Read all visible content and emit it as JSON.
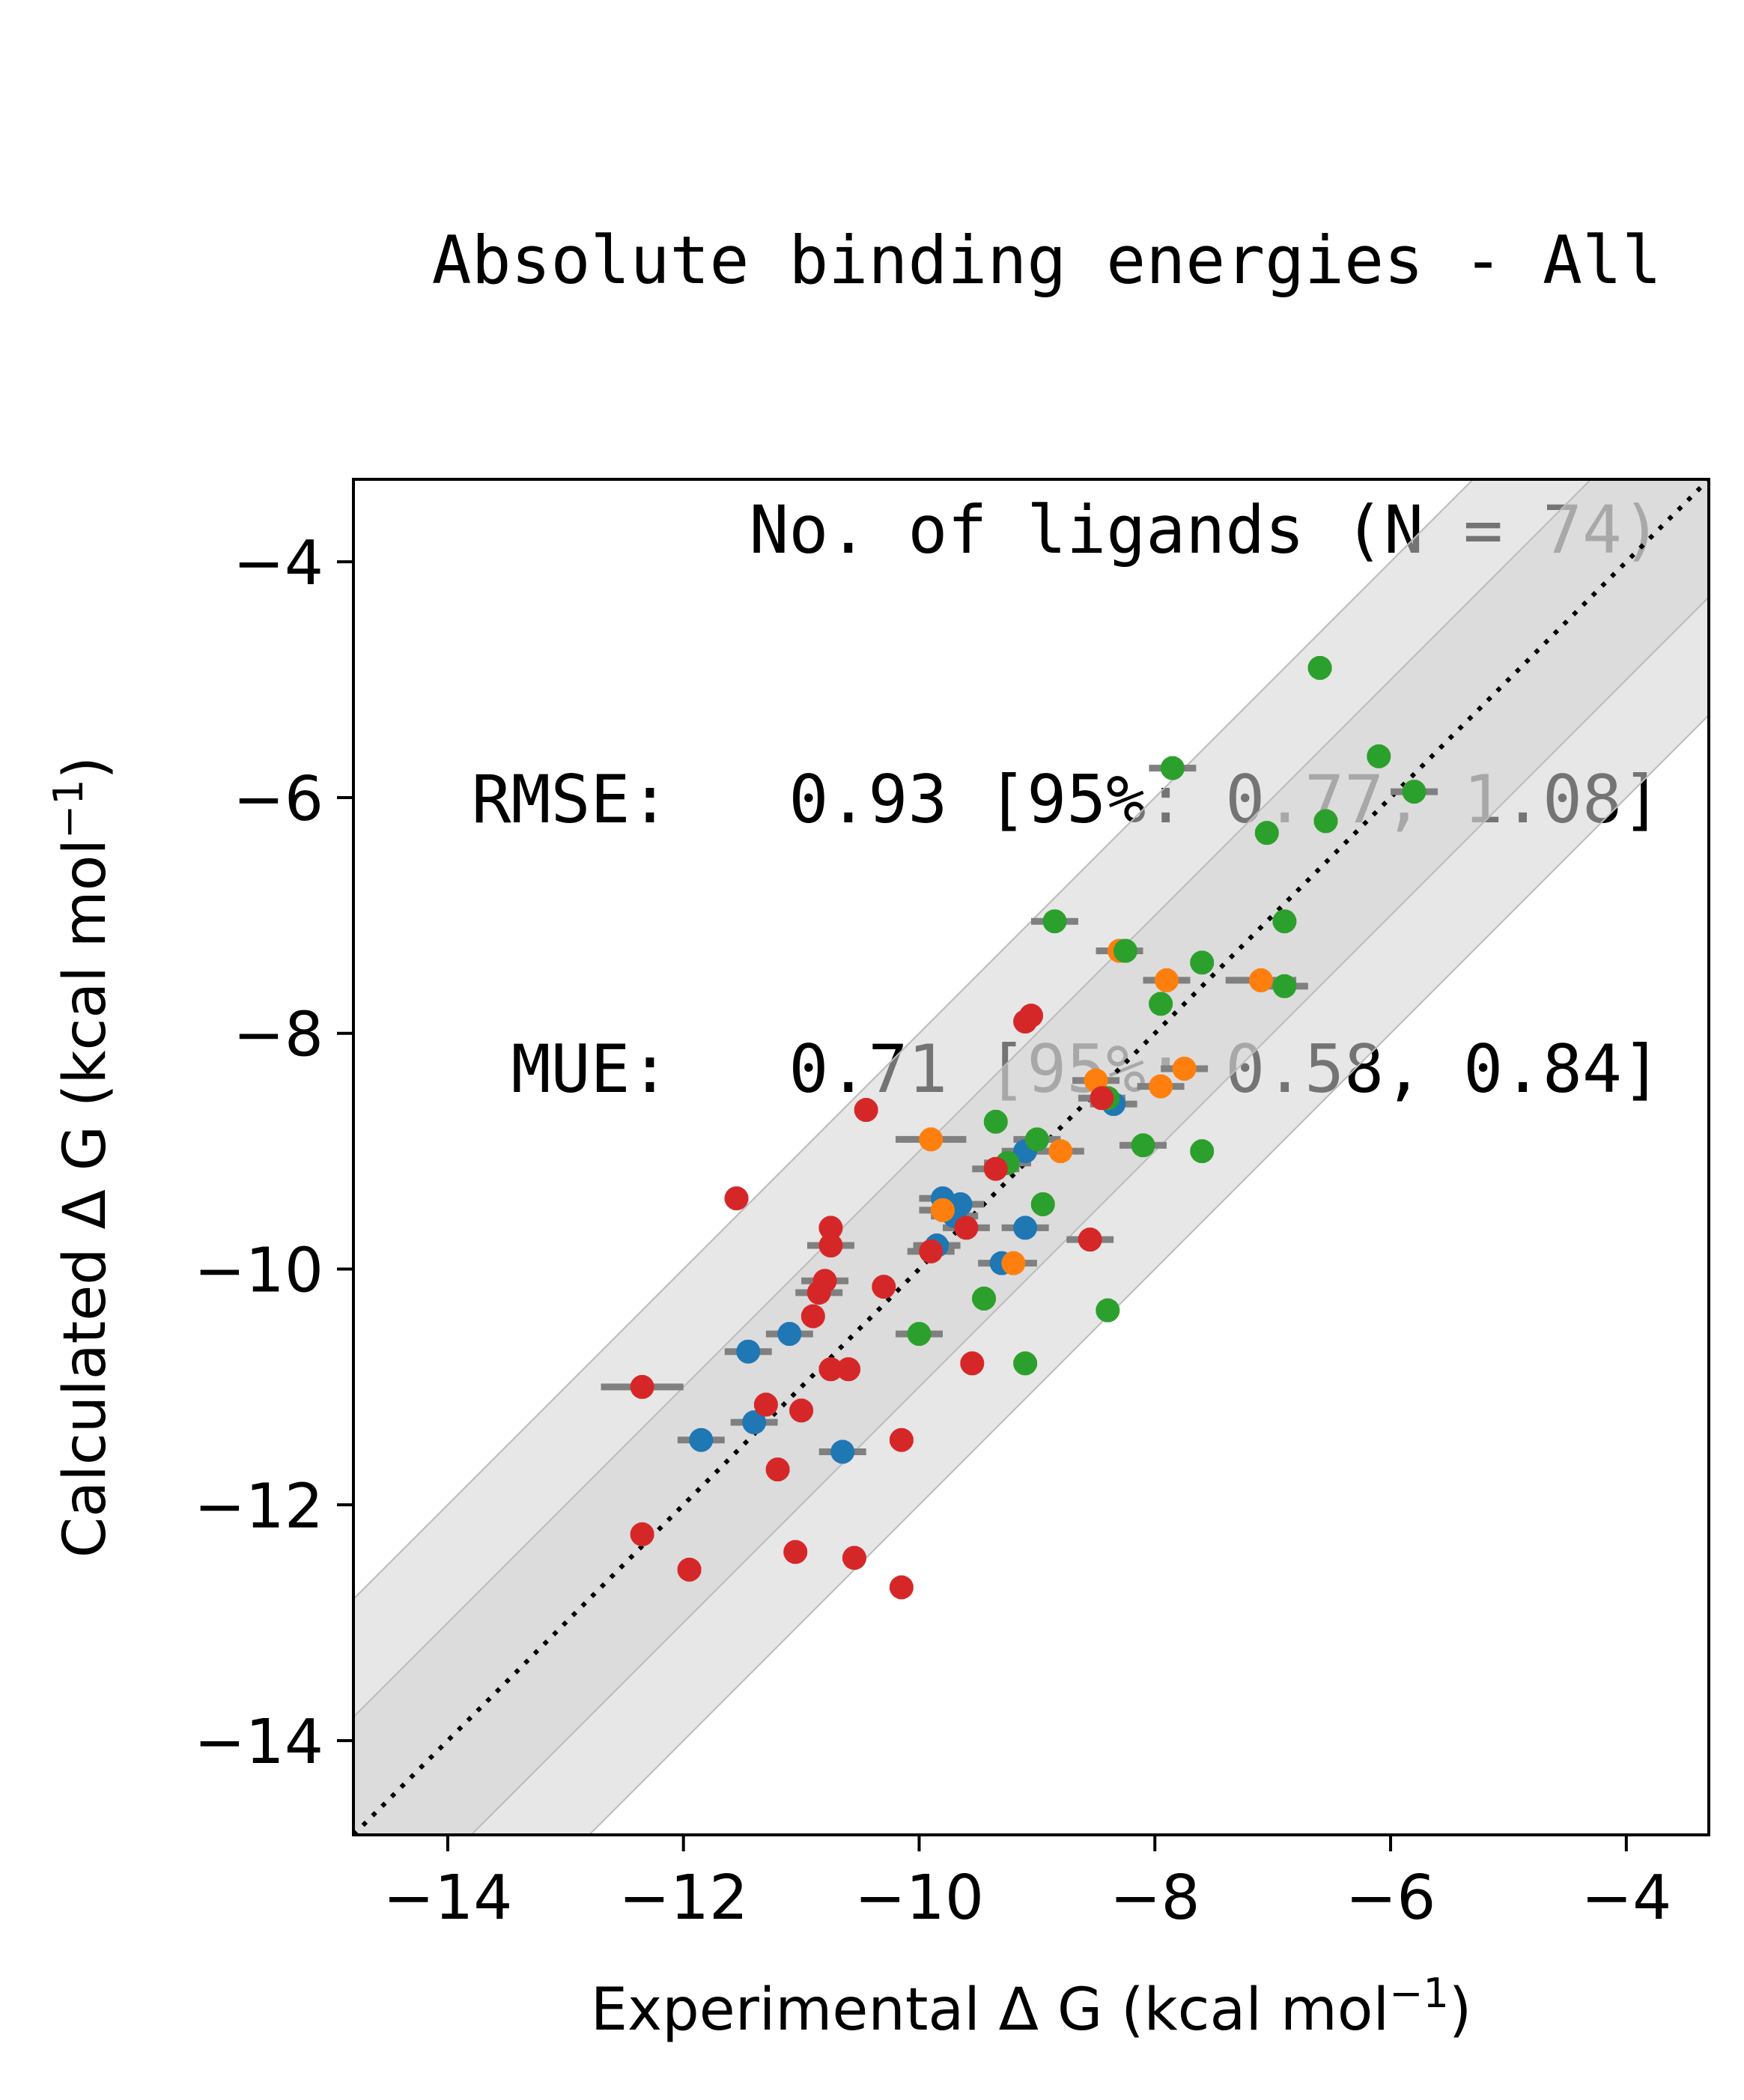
{
  "title_lines": [
    "Absolute binding energies - All",
    "No. of ligands (N = 74)",
    "RMSE:   0.93 [95%: 0.77, 1.08]",
    "MUE:   0.71 [95%: 0.58, 0.84]"
  ],
  "colors": {
    "blue": "#1f77b4",
    "orange": "#ff7f0e",
    "green": "#2ca02c",
    "red": "#d62728",
    "errorbar": "#808080",
    "band": "#d3d3d3"
  },
  "chart_data": {
    "type": "scatter",
    "title": "Absolute binding energies - All",
    "xlabel": "Experimental Δ G (kcal mol⁻¹)",
    "ylabel": "Calculated Δ G (kcal mol⁻¹)",
    "xlim": [
      -14.8,
      -3.3
    ],
    "ylim": [
      -14.8,
      -3.3
    ],
    "xticks": [
      -14,
      -12,
      -10,
      -8,
      -6,
      -4
    ],
    "yticks": [
      -14,
      -12,
      -10,
      -8,
      -6,
      -4
    ],
    "tick_labels": [
      "−14",
      "−12",
      "−10",
      "−8",
      "−6",
      "−4"
    ],
    "identity_line": true,
    "bands": [
      1,
      2
    ],
    "grid": false,
    "series": [
      {
        "color": "blue",
        "points": [
          [
            -9.8,
            -9.4,
            0.2,
            0.1
          ],
          [
            -9.65,
            -9.45,
            0.2,
            0.1
          ],
          [
            -9.7,
            -9.55,
            0.2,
            0.1
          ],
          [
            -9.85,
            -9.8,
            0.2,
            0.1
          ],
          [
            -9.1,
            -9.0,
            0.2,
            0.1
          ],
          [
            -9.1,
            -9.65,
            0.2,
            0.1
          ],
          [
            -9.3,
            -9.95,
            0.2,
            0.1
          ],
          [
            -11.1,
            -10.55,
            0.2,
            0.1
          ],
          [
            -11.45,
            -10.7,
            0.2,
            0.1
          ],
          [
            -11.85,
            -11.45,
            0.2,
            0.1
          ],
          [
            -11.4,
            -11.3,
            0.2,
            0.1
          ],
          [
            -10.65,
            -11.55,
            0.2,
            0.1
          ],
          [
            -8.35,
            -8.6,
            0.2,
            0.1
          ]
        ]
      },
      {
        "color": "orange",
        "points": [
          [
            -9.9,
            -8.9,
            0.3,
            0.1
          ],
          [
            -9.8,
            -9.5,
            0.2,
            0.1
          ],
          [
            -9.2,
            -9.95,
            0.2,
            0.1
          ],
          [
            -8.8,
            -9.0,
            0.2,
            0.1
          ],
          [
            -8.5,
            -8.4,
            0.2,
            0.1
          ],
          [
            -8.3,
            -7.3,
            0.2,
            0.1
          ],
          [
            -7.9,
            -7.55,
            0.2,
            0.1
          ],
          [
            -7.95,
            -8.45,
            0.2,
            0.1
          ],
          [
            -7.75,
            -8.3,
            0.2,
            0.1
          ],
          [
            -7.1,
            -7.55,
            0.3,
            0.1
          ]
        ]
      },
      {
        "color": "green",
        "points": [
          [
            -6.6,
            -4.9,
            0.1,
            0.1
          ],
          [
            -6.1,
            -5.65,
            0.1,
            0.1
          ],
          [
            -5.8,
            -5.95,
            0.2,
            0.1
          ],
          [
            -7.85,
            -5.75,
            0.2,
            0.1
          ],
          [
            -7.05,
            -6.3,
            0.1,
            0.1
          ],
          [
            -6.55,
            -6.2,
            0.1,
            0.1
          ],
          [
            -8.85,
            -7.05,
            0.2,
            0.1
          ],
          [
            -8.25,
            -7.3,
            0.1,
            0.1
          ],
          [
            -7.6,
            -7.4,
            0.1,
            0.1
          ],
          [
            -6.9,
            -7.05,
            0.1,
            0.1
          ],
          [
            -6.9,
            -7.6,
            0.2,
            0.1
          ],
          [
            -7.95,
            -7.75,
            0.1,
            0.1
          ],
          [
            -9.35,
            -8.75,
            0.1,
            0.1
          ],
          [
            -9.0,
            -8.9,
            0.2,
            0.1
          ],
          [
            -9.25,
            -9.1,
            0.2,
            0.1
          ],
          [
            -8.4,
            -8.55,
            0.1,
            0.1
          ],
          [
            -8.1,
            -8.95,
            0.2,
            0.1
          ],
          [
            -7.6,
            -9.0,
            0.1,
            0.1
          ],
          [
            -8.95,
            -9.45,
            0.1,
            0.1
          ],
          [
            -9.45,
            -10.25,
            0.1,
            0.1
          ],
          [
            -10.0,
            -10.55,
            0.2,
            0.1
          ],
          [
            -8.4,
            -10.35,
            0.1,
            0.1
          ],
          [
            -9.1,
            -10.8,
            0.1,
            0.1
          ]
        ]
      },
      {
        "color": "red",
        "points": [
          [
            -10.45,
            -8.65,
            0.1,
            0.1
          ],
          [
            -9.1,
            -7.9,
            0.1,
            0.1
          ],
          [
            -9.05,
            -7.85,
            0.1,
            0.1
          ],
          [
            -11.55,
            -9.4,
            0.1,
            0.1
          ],
          [
            -10.75,
            -9.65,
            0.1,
            0.1
          ],
          [
            -10.75,
            -9.8,
            0.2,
            0.1
          ],
          [
            -9.6,
            -9.65,
            0.2,
            0.1
          ],
          [
            -9.35,
            -9.15,
            0.2,
            0.1
          ],
          [
            -9.9,
            -9.85,
            0.2,
            0.1
          ],
          [
            -10.3,
            -10.15,
            0.1,
            0.1
          ],
          [
            -10.8,
            -10.1,
            0.2,
            0.1
          ],
          [
            -10.85,
            -10.2,
            0.2,
            0.1
          ],
          [
            -10.9,
            -10.4,
            0.1,
            0.1
          ],
          [
            -8.55,
            -9.75,
            0.2,
            0.1
          ],
          [
            -10.75,
            -10.85,
            0.1,
            0.1
          ],
          [
            -10.6,
            -10.85,
            0.1,
            0.1
          ],
          [
            -9.55,
            -10.8,
            0.1,
            0.1
          ],
          [
            -12.35,
            -11.0,
            0.35,
            0.1
          ],
          [
            -11.3,
            -11.15,
            0.1,
            0.1
          ],
          [
            -11.0,
            -11.2,
            0.1,
            0.1
          ],
          [
            -11.2,
            -11.7,
            0.1,
            0.1
          ],
          [
            -10.15,
            -11.45,
            0.1,
            0.1
          ],
          [
            -12.35,
            -12.25,
            0.1,
            0.1
          ],
          [
            -11.05,
            -12.4,
            0.1,
            0.1
          ],
          [
            -10.55,
            -12.45,
            0.1,
            0.1
          ],
          [
            -11.95,
            -12.55,
            0.1,
            0.1
          ],
          [
            -10.15,
            -12.7,
            0.1,
            0.1
          ],
          [
            -8.45,
            -8.55,
            0.2,
            0.1
          ]
        ]
      }
    ]
  }
}
